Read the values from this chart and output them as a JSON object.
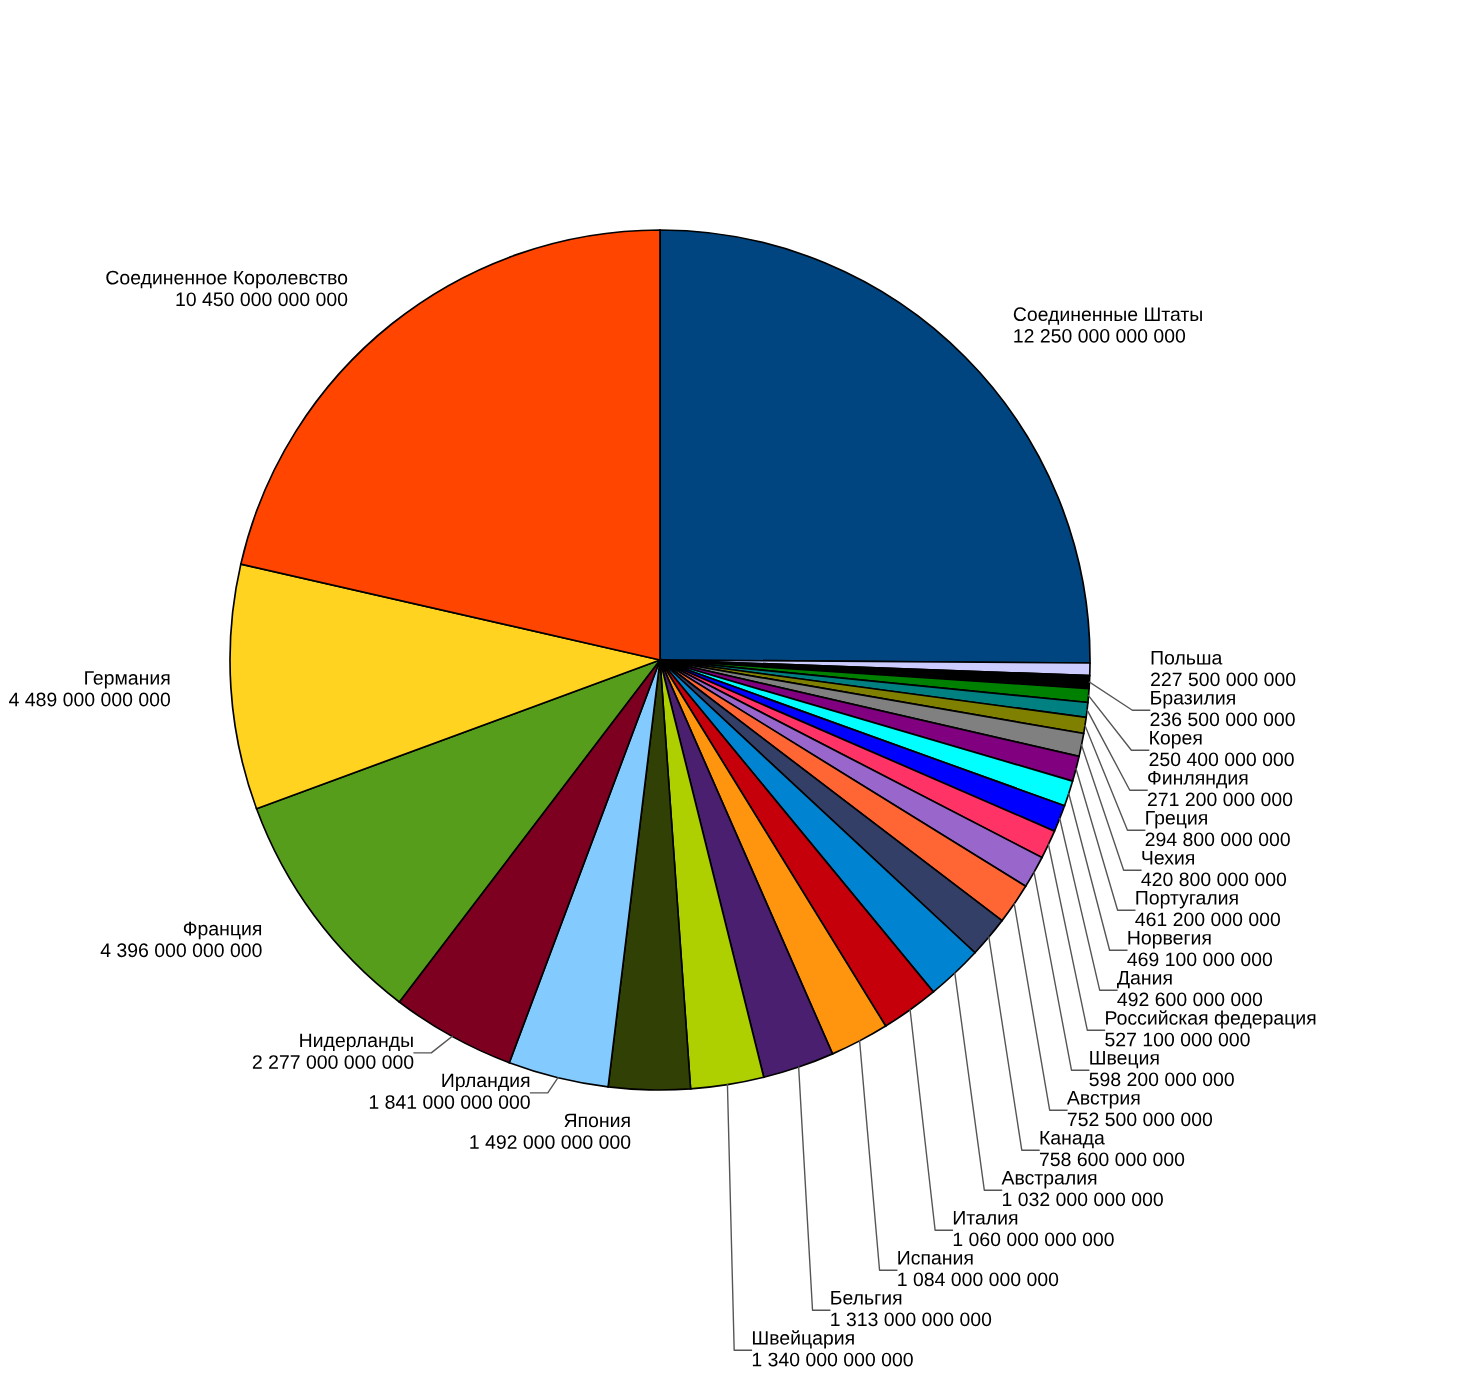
{
  "chart_data": {
    "type": "pie",
    "categories": [
      "Соединенные Штаты",
      "Польша",
      "Бразилия",
      "Корея",
      "Финляндия",
      "Греция",
      "Чехия",
      "Португалия",
      "Норвегия",
      "Дания",
      "Российская федерация",
      "Швеция",
      "Австрия",
      "Канада",
      "Австралия",
      "Италия",
      "Испания",
      "Бельгия",
      "Швейцария",
      "Япония",
      "Ирландия",
      "Нидерланды",
      "Франция",
      "Германия",
      "Соединенное Королевство"
    ],
    "values": [
      12250000000000,
      227500000000,
      236500000000,
      250400000000,
      271200000000,
      294800000000,
      420800000000,
      461200000000,
      469100000000,
      492600000000,
      527100000000,
      598200000000,
      752500000000,
      758600000000,
      1032000000000,
      1060000000000,
      1084000000000,
      1313000000000,
      1340000000000,
      1492000000000,
      1841000000000,
      2277000000000,
      4396000000000,
      4489000000000,
      10450000000000
    ],
    "value_labels": [
      "12 250 000 000 000",
      "227 500 000 000",
      "236 500 000 000",
      "250 400 000 000",
      "271 200 000 000",
      "294 800 000 000",
      "420 800 000 000",
      "461 200 000 000",
      "469 100 000 000",
      "492 600 000 000",
      "527 100 000 000",
      "598 200 000 000",
      "752 500 000 000",
      "758 600 000 000",
      "1 032 000 000 000",
      "1 060 000 000 000",
      "1 084 000 000 000",
      "1 313 000 000 000",
      "1 340 000 000 000",
      "1 492 000 000 000",
      "1 841 000 000 000",
      "2 277 000 000 000",
      "4 396 000 000 000",
      "4 489 000 000 000",
      "10 450 000 000 000"
    ],
    "colors": [
      "#00457f",
      "#ccccff",
      "#000000",
      "#008000",
      "#008080",
      "#808000",
      "#808080",
      "#800080",
      "#00ffff",
      "#0000ff",
      "#ff3366",
      "#9966cc",
      "#ff6633",
      "#333f66",
      "#0084d1",
      "#c5000b",
      "#ff950e",
      "#4b1f6f",
      "#aecf00",
      "#314004",
      "#83caff",
      "#7e0021",
      "#579d1c",
      "#ffd320",
      "#ff4500"
    ],
    "legend": false
  }
}
